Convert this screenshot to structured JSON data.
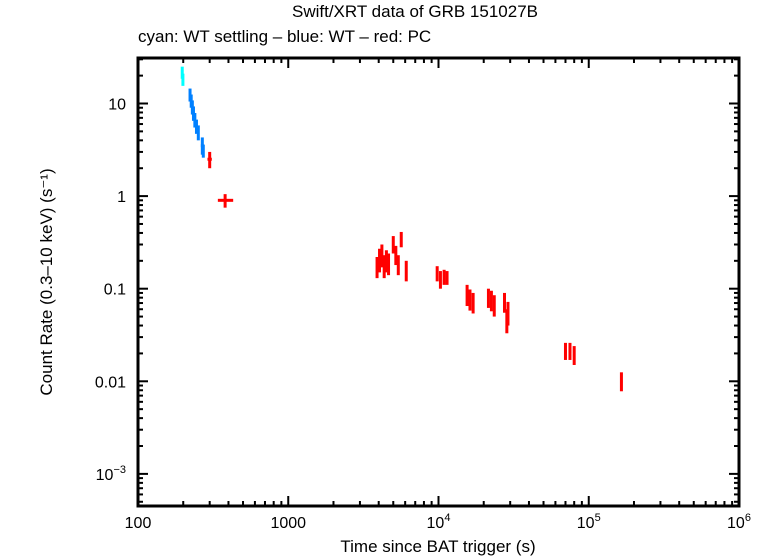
{
  "chart_data": {
    "type": "scatter",
    "title": "Swift/XRT data of GRB 151027B",
    "subtitle": "cyan: WT settling – blue: WT – red: PC",
    "xlabel": "Time since BAT trigger (s)",
    "ylabel": "Count Rate (0.3–10 keV) (s⁻¹)",
    "xscale": "log",
    "yscale": "log",
    "xlim": [
      100,
      1000000
    ],
    "ylim": [
      0.00045,
      31
    ],
    "x_ticks": [
      {
        "value": 100,
        "label": "100"
      },
      {
        "value": 1000,
        "label": "1000"
      },
      {
        "value": 10000,
        "label": "10",
        "sup": "4"
      },
      {
        "value": 100000,
        "label": "10",
        "sup": "5"
      },
      {
        "value": 1000000,
        "label": "10",
        "sup": "6"
      }
    ],
    "y_ticks": [
      {
        "value": 10,
        "label": "10"
      },
      {
        "value": 1,
        "label": "1"
      },
      {
        "value": 0.1,
        "label": "0.1"
      },
      {
        "value": 0.01,
        "label": "0.01"
      },
      {
        "value": 0.001,
        "label": "10",
        "sup": "−3"
      }
    ],
    "grid": false,
    "series": [
      {
        "name": "WT settling",
        "color": "#00ffff",
        "points": [
          {
            "t": 197,
            "t_lo": 196,
            "t_hi": 199,
            "r": 21.5,
            "r_lo": 18.5,
            "r_hi": 25
          },
          {
            "t": 199,
            "t_lo": 198,
            "t_hi": 201,
            "r": 18,
            "r_lo": 15.5,
            "r_hi": 21
          }
        ]
      },
      {
        "name": "WT",
        "color": "#0080ff",
        "points": [
          {
            "t": 222,
            "t_lo": 220,
            "t_hi": 224,
            "r": 12.5,
            "r_lo": 10.5,
            "r_hi": 14.5
          },
          {
            "t": 226,
            "t_lo": 224,
            "t_hi": 228,
            "r": 10.5,
            "r_lo": 9,
            "r_hi": 12.5
          },
          {
            "t": 230,
            "t_lo": 228,
            "t_hi": 232,
            "r": 9,
            "r_lo": 7.6,
            "r_hi": 10.8
          },
          {
            "t": 234,
            "t_lo": 232,
            "t_hi": 236,
            "r": 7.8,
            "r_lo": 6.5,
            "r_hi": 9.3
          },
          {
            "t": 239,
            "t_lo": 236,
            "t_hi": 242,
            "r": 6.6,
            "r_lo": 5.5,
            "r_hi": 7.9
          },
          {
            "t": 245,
            "t_lo": 242,
            "t_hi": 248,
            "r": 5.6,
            "r_lo": 4.7,
            "r_hi": 6.7
          },
          {
            "t": 252,
            "t_lo": 248,
            "t_hi": 256,
            "r": 4.8,
            "r_lo": 4,
            "r_hi": 5.8
          },
          {
            "t": 268,
            "t_lo": 262,
            "t_hi": 274,
            "r": 3.5,
            "r_lo": 2.8,
            "r_hi": 4.3
          },
          {
            "t": 272,
            "t_lo": 268,
            "t_hi": 276,
            "r": 3.0,
            "r_lo": 2.6,
            "r_hi": 3.6
          }
        ]
      },
      {
        "name": "PC",
        "color": "#ff0000",
        "points": [
          {
            "t": 300,
            "t_lo": 290,
            "t_hi": 310,
            "r": 2.5,
            "r_lo": 2.0,
            "r_hi": 3.0
          },
          {
            "t": 380,
            "t_lo": 340,
            "t_hi": 430,
            "r": 0.9,
            "r_lo": 0.75,
            "r_hi": 1.05
          },
          {
            "t": 3900,
            "t_lo": 3850,
            "t_hi": 3950,
            "r": 0.17,
            "r_lo": 0.13,
            "r_hi": 0.22
          },
          {
            "t": 4050,
            "t_lo": 4000,
            "t_hi": 4100,
            "r": 0.2,
            "r_lo": 0.15,
            "r_hi": 0.27
          },
          {
            "t": 4200,
            "t_lo": 4150,
            "t_hi": 4250,
            "r": 0.23,
            "r_lo": 0.17,
            "r_hi": 0.3
          },
          {
            "t": 4350,
            "t_lo": 4300,
            "t_hi": 4400,
            "r": 0.17,
            "r_lo": 0.13,
            "r_hi": 0.23
          },
          {
            "t": 4500,
            "t_lo": 4450,
            "t_hi": 4550,
            "r": 0.2,
            "r_lo": 0.15,
            "r_hi": 0.26
          },
          {
            "t": 4650,
            "t_lo": 4600,
            "t_hi": 4700,
            "r": 0.18,
            "r_lo": 0.14,
            "r_hi": 0.24
          },
          {
            "t": 5000,
            "t_lo": 4950,
            "t_hi": 5050,
            "r": 0.3,
            "r_lo": 0.24,
            "r_hi": 0.37
          },
          {
            "t": 5200,
            "t_lo": 5150,
            "t_hi": 5250,
            "r": 0.23,
            "r_lo": 0.18,
            "r_hi": 0.29
          },
          {
            "t": 5400,
            "t_lo": 5350,
            "t_hi": 5450,
            "r": 0.18,
            "r_lo": 0.14,
            "r_hi": 0.23
          },
          {
            "t": 5650,
            "t_lo": 5600,
            "t_hi": 5700,
            "r": 0.34,
            "r_lo": 0.28,
            "r_hi": 0.41
          },
          {
            "t": 6100,
            "t_lo": 6050,
            "t_hi": 6150,
            "r": 0.16,
            "r_lo": 0.12,
            "r_hi": 0.2
          },
          {
            "t": 9800,
            "t_lo": 9700,
            "t_hi": 9900,
            "r": 0.145,
            "r_lo": 0.12,
            "r_hi": 0.175
          },
          {
            "t": 10300,
            "t_lo": 10200,
            "t_hi": 10400,
            "r": 0.125,
            "r_lo": 0.1,
            "r_hi": 0.155
          },
          {
            "t": 10900,
            "t_lo": 10750,
            "t_hi": 11050,
            "r": 0.135,
            "r_lo": 0.11,
            "r_hi": 0.16
          },
          {
            "t": 11400,
            "t_lo": 11250,
            "t_hi": 11550,
            "r": 0.13,
            "r_lo": 0.11,
            "r_hi": 0.155
          },
          {
            "t": 15500,
            "t_lo": 15300,
            "t_hi": 15700,
            "r": 0.085,
            "r_lo": 0.065,
            "r_hi": 0.11
          },
          {
            "t": 16200,
            "t_lo": 16000,
            "t_hi": 16400,
            "r": 0.075,
            "r_lo": 0.058,
            "r_hi": 0.098
          },
          {
            "t": 17000,
            "t_lo": 16800,
            "t_hi": 17200,
            "r": 0.07,
            "r_lo": 0.054,
            "r_hi": 0.09
          },
          {
            "t": 21500,
            "t_lo": 21300,
            "t_hi": 21700,
            "r": 0.08,
            "r_lo": 0.062,
            "r_hi": 0.1
          },
          {
            "t": 22500,
            "t_lo": 22300,
            "t_hi": 22700,
            "r": 0.075,
            "r_lo": 0.057,
            "r_hi": 0.095
          },
          {
            "t": 23500,
            "t_lo": 23300,
            "t_hi": 23700,
            "r": 0.065,
            "r_lo": 0.05,
            "r_hi": 0.085
          },
          {
            "t": 27500,
            "t_lo": 27300,
            "t_hi": 27700,
            "r": 0.07,
            "r_lo": 0.055,
            "r_hi": 0.09
          },
          {
            "t": 28500,
            "t_lo": 28300,
            "t_hi": 28700,
            "r": 0.045,
            "r_lo": 0.033,
            "r_hi": 0.06
          },
          {
            "t": 29000,
            "t_lo": 28800,
            "t_hi": 29200,
            "r": 0.055,
            "r_lo": 0.04,
            "r_hi": 0.072
          },
          {
            "t": 70000,
            "t_lo": 68500,
            "t_hi": 71500,
            "r": 0.021,
            "r_lo": 0.017,
            "r_hi": 0.026
          },
          {
            "t": 75000,
            "t_lo": 73500,
            "t_hi": 76500,
            "r": 0.021,
            "r_lo": 0.017,
            "r_hi": 0.026
          },
          {
            "t": 80000,
            "t_lo": 78500,
            "t_hi": 81500,
            "r": 0.019,
            "r_lo": 0.015,
            "r_hi": 0.024
          },
          {
            "t": 165000,
            "t_lo": 162000,
            "t_hi": 168000,
            "r": 0.01,
            "r_lo": 0.0078,
            "r_hi": 0.0125
          }
        ]
      }
    ]
  }
}
